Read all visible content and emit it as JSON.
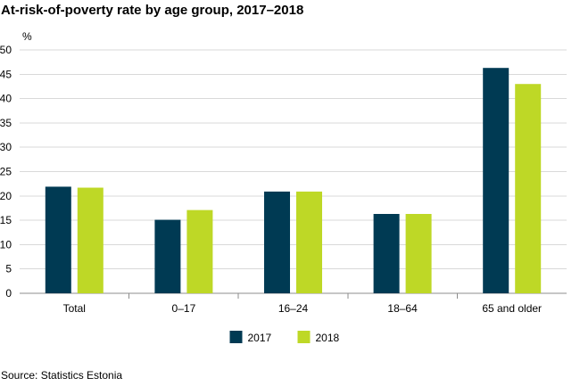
{
  "chart_data": {
    "type": "bar",
    "title": "At-risk-of-poverty rate by age group, 2017–2018",
    "ylabel": "%",
    "xlabel": "",
    "categories": [
      "Total",
      "0–17",
      "16–24",
      "18–64",
      "65 and older"
    ],
    "series": [
      {
        "name": "2017",
        "color": "#003a53",
        "values": [
          21.9,
          15.1,
          20.9,
          16.3,
          46.3
        ]
      },
      {
        "name": "2018",
        "color": "#bed826",
        "values": [
          21.7,
          17.1,
          20.9,
          16.3,
          43.0
        ]
      }
    ],
    "yticks": [
      "0",
      "5",
      "10",
      "15",
      "20",
      "25",
      "30",
      "35",
      "40",
      "45",
      "50"
    ],
    "ylim": [
      0,
      50
    ],
    "grid": true,
    "legend": "bottom-center",
    "source": "Source: Statistics Estonia"
  }
}
